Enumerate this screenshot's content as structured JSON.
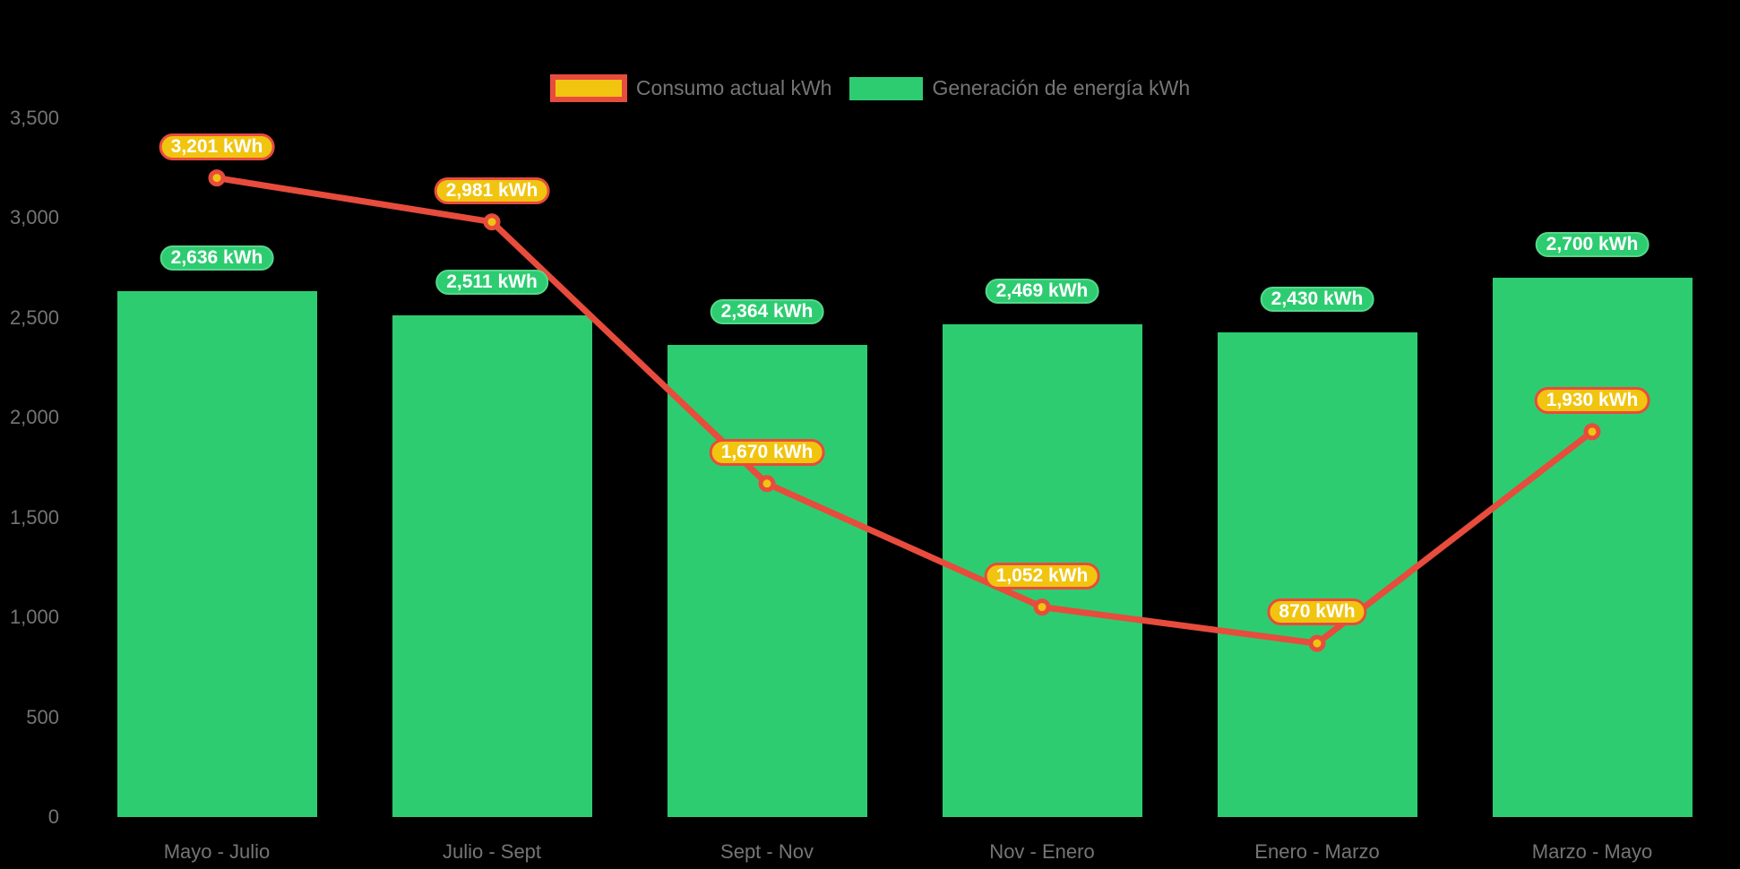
{
  "background": "#000000",
  "colors": {
    "bar": "#2ecc71",
    "bar_pill_border": "#55d88b",
    "line": "#e74c3c",
    "point_fill": "#f1c40f",
    "consumption_pill_bg": "#f1c40f",
    "consumption_pill_border": "#e74c3c",
    "axis_text": "#757575",
    "pill_text": "#ffffff"
  },
  "legend": {
    "position": "top-center",
    "items": [
      {
        "label": "Consumo actual kWh"
      },
      {
        "label": "Generación de energía kWh"
      }
    ]
  },
  "chart_data": {
    "type": "bar+line",
    "categories": [
      "Mayo - Julio",
      "Julio - Sept",
      "Sept - Nov",
      "Nov - Enero",
      "Enero - Marzo",
      "Marzo - Mayo"
    ],
    "series": [
      {
        "name": "Consumo actual kWh",
        "type": "line",
        "color": "#e74c3c",
        "point_color": "#f1c40f",
        "values": [
          3201,
          2981,
          1670,
          1052,
          870,
          1930
        ],
        "data_labels": [
          "3,201 kWh",
          "2,981 kWh",
          "1,670 kWh",
          "1,052 kWh",
          "870 kWh",
          "1,930 kWh"
        ]
      },
      {
        "name": "Generación de energía kWh",
        "type": "bar",
        "color": "#2ecc71",
        "values": [
          2636,
          2511,
          2364,
          2469,
          2430,
          2700
        ],
        "data_labels": [
          "2,636 kWh",
          "2,511 kWh",
          "2,364 kWh",
          "2,469 kWh",
          "2,430 kWh",
          "2,700 kWh"
        ]
      }
    ],
    "y_axis": {
      "min": 0,
      "max": 3500,
      "tick_step": 500,
      "tick_labels": [
        "0",
        "500",
        "1,000",
        "1,500",
        "2,000",
        "2,500",
        "3,000",
        "3,500"
      ]
    },
    "grid": false,
    "legend_position": "top",
    "title": ""
  }
}
